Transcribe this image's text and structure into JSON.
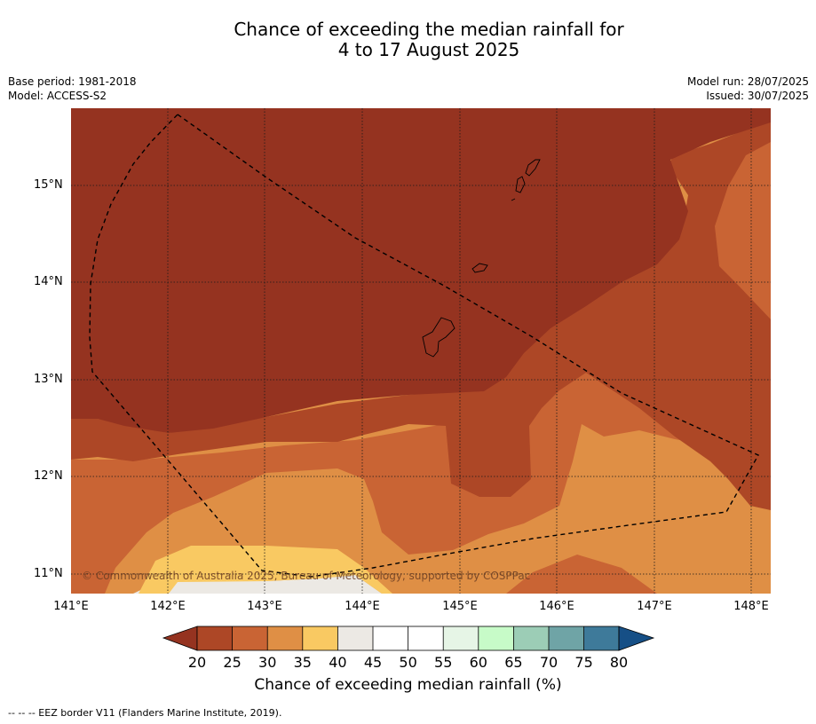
{
  "title_line1": "Chance of exceeding the median rainfall for",
  "title_line2": "4 to 17 August 2025",
  "base_period": "Base period: 1981-2018",
  "model": "Model: ACCESS-S2",
  "model_run": "Model run: 28/07/2025",
  "issued": "Issued: 30/07/2025",
  "copyright": "© Commonwealth of Australia 2025, Bureau of Meteorology, supported by COSPPac",
  "lat_labels": [
    "15°N",
    "14°N",
    "13°N",
    "12°N",
    "11°N"
  ],
  "lon_labels": [
    "141°E",
    "142°E",
    "143°E",
    "144°E",
    "145°E",
    "146°E",
    "147°E",
    "148°E"
  ],
  "colorbar": {
    "ticks": [
      "20",
      "25",
      "30",
      "35",
      "40",
      "45",
      "50",
      "55",
      "60",
      "65",
      "70",
      "75",
      "80"
    ],
    "colors": [
      "#ad4726",
      "#c96434",
      "#df8f45",
      "#f9c962",
      "#ece9e4",
      "#ffffff",
      "#ffffff",
      "#e6f5e6",
      "#c7fbc8",
      "#9ccdb6",
      "#6fa4a6",
      "#3e7a9a"
    ],
    "under_color": "#953320",
    "over_color": "#164f86",
    "label": "Chance of exceeding median rainfall (%)"
  },
  "footnote": "-- -- -- EEZ border V11 (Flanders Marine Institute, 2019)."
}
